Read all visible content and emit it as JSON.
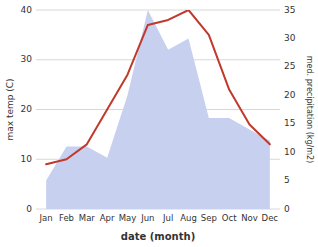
{
  "chart_data": {
    "type": "line",
    "xlabel": "date (month)",
    "ylabel": "max temp (C)",
    "y2label": "med. precipitation (kg/m2)",
    "categories": [
      "Jan",
      "Feb",
      "Mar",
      "Apr",
      "May",
      "Jun",
      "Jul",
      "Aug",
      "Sep",
      "Oct",
      "Nov",
      "Dec"
    ],
    "series": [
      {
        "type": "area",
        "axis": "y2",
        "color": "#c8d0f0",
        "values": [
          5,
          11,
          11,
          9,
          20,
          35,
          28,
          30,
          16,
          16,
          14,
          12
        ]
      },
      {
        "type": "line",
        "color": "#c0392b",
        "values": [
          9,
          10,
          13,
          20,
          27,
          37,
          38,
          40,
          35,
          24,
          17,
          13
        ]
      }
    ],
    "ylim": [
      0,
      40
    ],
    "yticks": [
      0,
      10,
      20,
      30,
      40
    ],
    "y2lim": [
      0,
      35
    ],
    "y2ticks": [
      0,
      5,
      10,
      15,
      20,
      25,
      30,
      35
    ],
    "grid": true
  }
}
